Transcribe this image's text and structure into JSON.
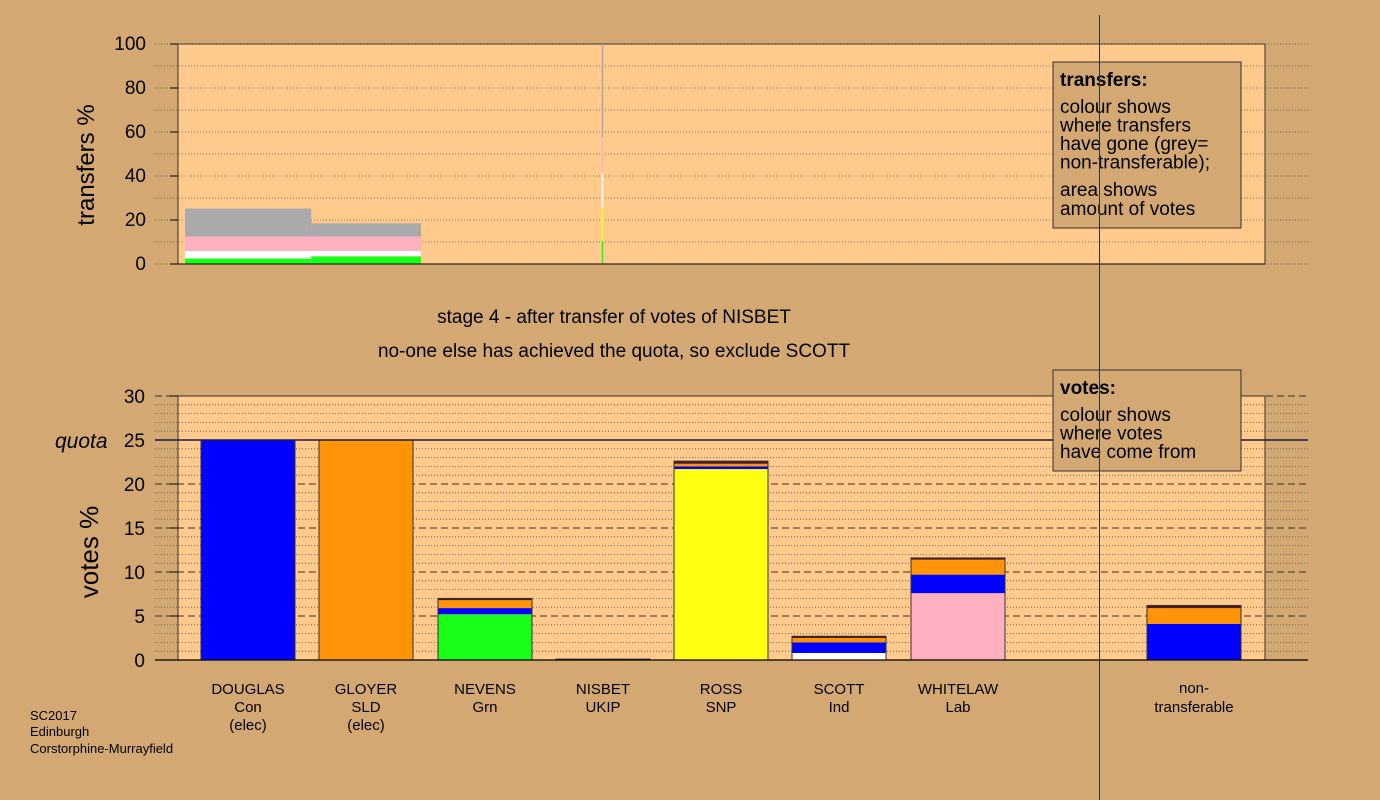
{
  "stage_title": "stage 4 - after transfer of votes of NISBET",
  "stage_subtitle": "no-one else has achieved the quota, so exclude SCOTT",
  "footer": {
    "line1": "SC2017",
    "line2": "Edinburgh",
    "line3": "Corstorphine-Murrayfield"
  },
  "transfers_legend": {
    "title": "transfers:",
    "lines": [
      "colour shows",
      "where transfers",
      "have gone (grey=",
      "non-transferable);"
    ],
    "lines2": [
      "area shows",
      "amount of votes"
    ]
  },
  "votes_legend": {
    "title": "votes:",
    "lines": [
      "colour shows",
      "where votes",
      "have come from"
    ]
  },
  "colors": {
    "background": "#d4a873",
    "plot_bg": "#ffca8c",
    "Con": "#0000ff",
    "SLD": "#ff9408",
    "Grn": "#1aff1a",
    "UKIP": "#6a2b9a",
    "SNP": "#ffff14",
    "Ind": "#ffffff",
    "Lab": "#ffb0c0",
    "nontransferable": "#aaaaaa",
    "dark": "#4a1a2a"
  },
  "chart_data": [
    {
      "type": "bar",
      "title": "",
      "ylabel": "transfers %",
      "ylim": [
        0,
        100
      ],
      "yticks": [
        0,
        20,
        40,
        60,
        80,
        100
      ],
      "grid": true,
      "blocks": [
        {
          "x_start": 0,
          "x_end": 1.07,
          "segments": [
            {
              "color": "Grn",
              "value": 2.5
            },
            {
              "color": "Ind",
              "value": 3.5
            },
            {
              "color": "Lab",
              "value": 6.5
            },
            {
              "color": "nontransferable",
              "value": 12.7
            }
          ]
        },
        {
          "x_start": 1.07,
          "x_end": 2.0,
          "segments": [
            {
              "color": "Grn",
              "value": 3.5
            },
            {
              "color": "Ind",
              "value": 2.5
            },
            {
              "color": "Lab",
              "value": 6.5
            },
            {
              "color": "nontransferable",
              "value": 6.0
            }
          ]
        }
      ],
      "thin_line": {
        "x": 3.6,
        "segments": [
          {
            "color": "Grn",
            "value": 10.5
          },
          {
            "color": "SNP",
            "value": 15
          },
          {
            "color": "Ind",
            "value": 16
          },
          {
            "color": "Lab",
            "value": 16
          },
          {
            "color": "nontransferable",
            "value": 42
          }
        ]
      }
    },
    {
      "type": "bar",
      "title": "",
      "ylabel": "votes %",
      "ylim": [
        0,
        30
      ],
      "yticks": [
        0,
        5,
        10,
        15,
        20,
        25,
        30
      ],
      "quota": 25,
      "quota_label": "quota",
      "grid": true,
      "categories": [
        {
          "name": "DOUGLAS",
          "party": "Con",
          "note": "(elec)"
        },
        {
          "name": "GLOYER",
          "party": "SLD",
          "note": "(elec)"
        },
        {
          "name": "NEVENS",
          "party": "Grn",
          "note": ""
        },
        {
          "name": "NISBET",
          "party": "UKIP",
          "note": ""
        },
        {
          "name": "ROSS",
          "party": "SNP",
          "note": ""
        },
        {
          "name": "SCOTT",
          "party": "Ind",
          "note": ""
        },
        {
          "name": "WHITELAW",
          "party": "Lab",
          "note": ""
        }
      ],
      "nontransferable_label": [
        "non-",
        "transferable"
      ],
      "stacks": [
        [
          {
            "color": "Con",
            "value": 25
          }
        ],
        [
          {
            "color": "SLD",
            "value": 25
          }
        ],
        [
          {
            "color": "Grn",
            "value": 5.2
          },
          {
            "color": "Con",
            "value": 0.7
          },
          {
            "color": "SLD",
            "value": 0.9
          },
          {
            "color": "dark",
            "value": 0.2
          }
        ],
        [
          {
            "color": "UKIP",
            "value": 0.1
          }
        ],
        [
          {
            "color": "SNP",
            "value": 21.7
          },
          {
            "color": "Con",
            "value": 0.3
          },
          {
            "color": "SLD",
            "value": 0.3
          },
          {
            "color": "dark",
            "value": 0.3
          }
        ],
        [
          {
            "color": "Ind",
            "value": 0.8
          },
          {
            "color": "Con",
            "value": 1.2
          },
          {
            "color": "SLD",
            "value": 0.5
          },
          {
            "color": "dark",
            "value": 0.2
          }
        ],
        [
          {
            "color": "Lab",
            "value": 7.6
          },
          {
            "color": "Con",
            "value": 2.1
          },
          {
            "color": "SLD",
            "value": 1.7
          },
          {
            "color": "dark",
            "value": 0.2
          }
        ],
        [
          {
            "color": "Con",
            "value": 4.1
          },
          {
            "color": "SLD",
            "value": 1.8
          },
          {
            "color": "dark",
            "value": 0.3
          }
        ]
      ]
    }
  ]
}
